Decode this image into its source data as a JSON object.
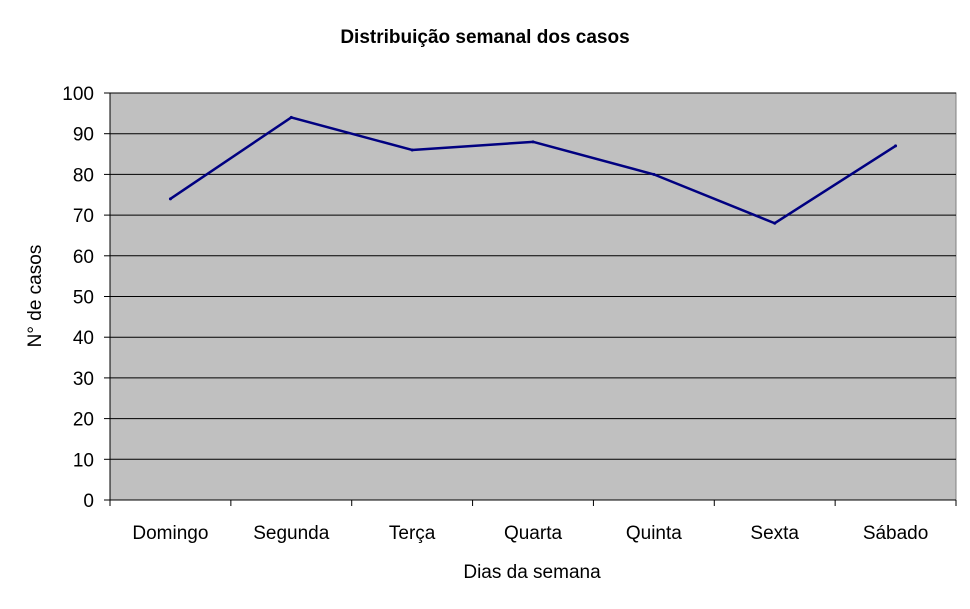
{
  "chart_data": {
    "type": "line",
    "title": "Distribuição semanal dos casos",
    "xlabel": "Dias da semana",
    "ylabel": "N° de casos",
    "categories": [
      "Domingo",
      "Segunda",
      "Terça",
      "Quarta",
      "Quinta",
      "Sexta",
      "Sábado"
    ],
    "series": [
      {
        "values": [
          74,
          94,
          86,
          88,
          80,
          68,
          87
        ]
      }
    ],
    "ylim": [
      0,
      100
    ],
    "yticks": [
      "0",
      "10",
      "20",
      "30",
      "40",
      "50",
      "60",
      "70",
      "80",
      "90",
      "100"
    ],
    "grid": true,
    "legend": "none",
    "colors": {
      "plot_bg": "#c0c0c0",
      "line": "#000080",
      "grid": "#000000"
    }
  }
}
